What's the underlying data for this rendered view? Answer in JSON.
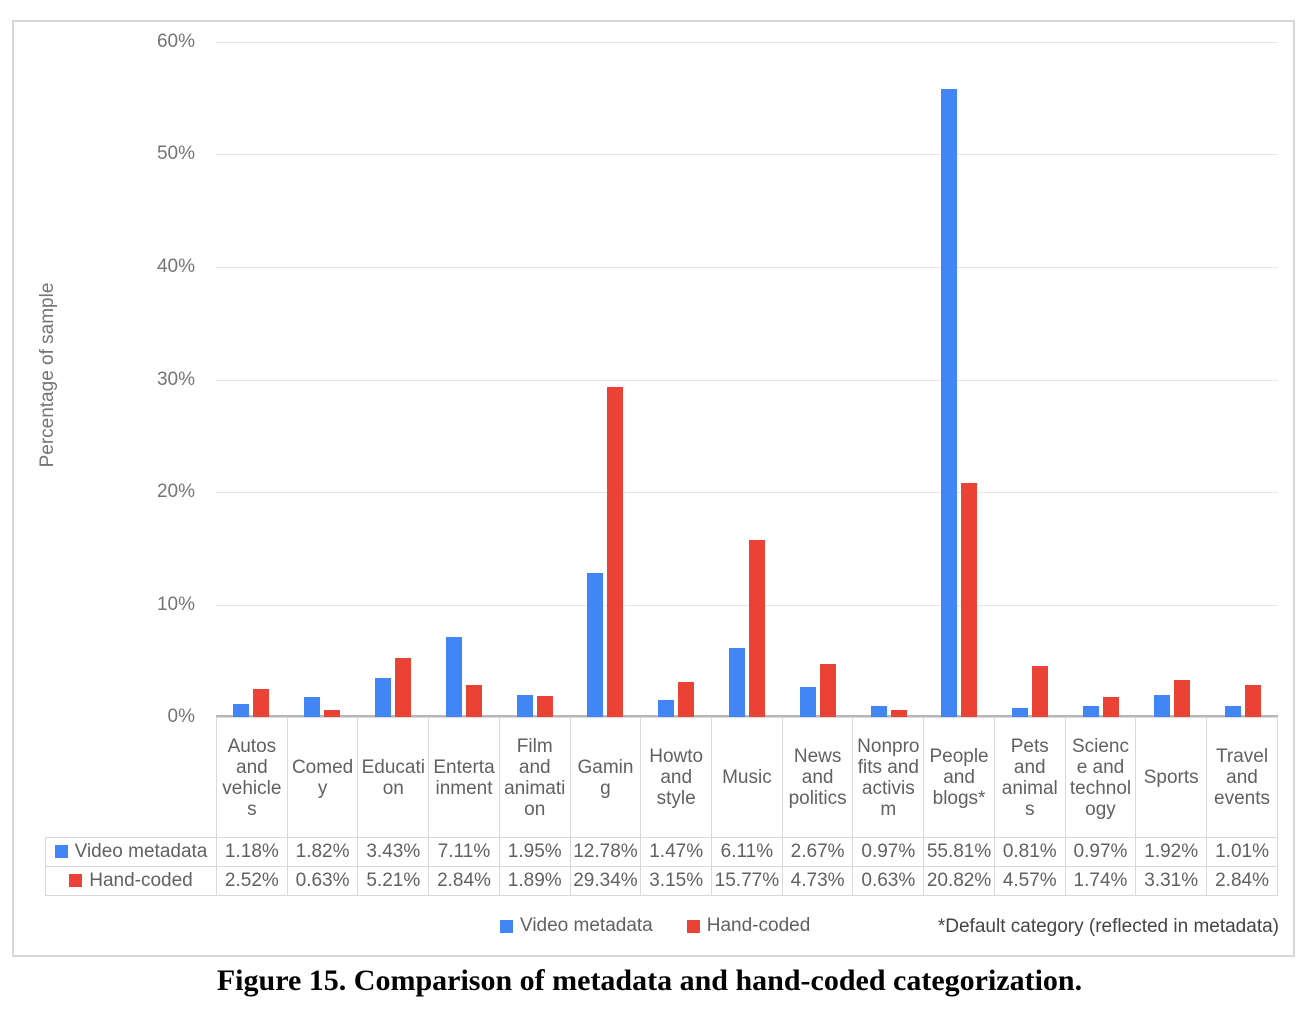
{
  "caption": "Figure 15. Comparison of metadata and hand-coded categorization.",
  "chart_data": {
    "type": "bar",
    "title": "",
    "xlabel": "",
    "ylabel": "Percentage of sample",
    "ylim": [
      0,
      60
    ],
    "y_tick_step": 10,
    "y_tick_labels": [
      "0%",
      "10%",
      "20%",
      "30%",
      "40%",
      "50%",
      "60%"
    ],
    "grid": true,
    "legend_position": "bottom",
    "footnote": "*Default category (reflected in metadata)",
    "categories": [
      "Autos and vehicles",
      "Comedy",
      "Education",
      "Entertainment",
      "Film and animation",
      "Gaming",
      "Howto and style",
      "Music",
      "News and politics",
      "Nonprofits and activism",
      "People and blogs*",
      "Pets and animals",
      "Science and technology",
      "Sports",
      "Travel and events"
    ],
    "series": [
      {
        "name": "Video metadata",
        "color": "#4285F4",
        "values": [
          1.18,
          1.82,
          3.43,
          7.11,
          1.95,
          12.78,
          1.47,
          6.11,
          2.67,
          0.97,
          55.81,
          0.81,
          0.97,
          1.92,
          1.01
        ],
        "display_values": [
          "1.18%",
          "1.82%",
          "3.43%",
          "7.11%",
          "1.95%",
          "12.78%",
          "1.47%",
          "6.11%",
          "2.67%",
          "0.97%",
          "55.81%",
          "0.81%",
          "0.97%",
          "1.92%",
          "1.01%"
        ]
      },
      {
        "name": "Hand-coded",
        "color": "#EA4335",
        "values": [
          2.52,
          0.63,
          5.21,
          2.84,
          1.89,
          29.34,
          3.15,
          15.77,
          4.73,
          0.63,
          20.82,
          4.57,
          1.74,
          3.31,
          2.84
        ],
        "display_values": [
          "2.52%",
          "0.63%",
          "5.21%",
          "2.84%",
          "1.89%",
          "29.34%",
          "3.15%",
          "15.77%",
          "4.73%",
          "0.63%",
          "20.82%",
          "4.57%",
          "1.74%",
          "3.31%",
          "2.84%"
        ]
      }
    ],
    "colors": {
      "grid": "#e6e6e6",
      "axis_line": "#b7b7b7",
      "tick_text": "#757575",
      "table_text": "#616161",
      "table_border": "#d9d9d9",
      "frame_border": "#d7d7d7",
      "footnote_text": "#444444"
    }
  }
}
